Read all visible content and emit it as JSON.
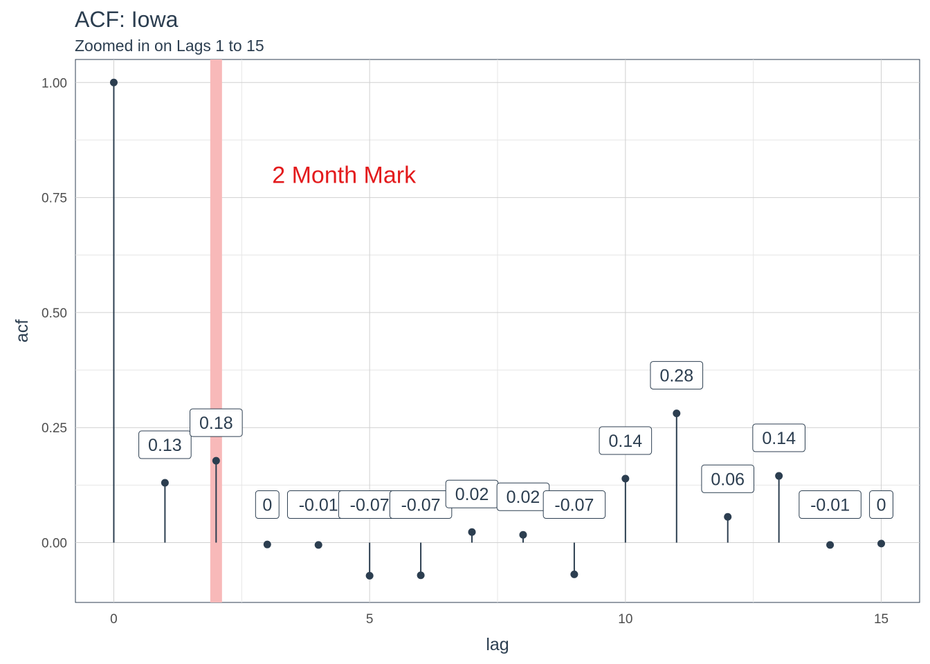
{
  "chart_data": {
    "type": "lollipop",
    "title": "ACF: Iowa",
    "subtitle": "Zoomed in on Lags 1 to 15",
    "xlabel": "lag",
    "ylabel": "acf",
    "xlim": [
      -0.75,
      15.75
    ],
    "ylim": [
      -0.13,
      1.05
    ],
    "x_ticks": [
      0,
      5,
      10,
      15
    ],
    "y_ticks": [
      0.0,
      0.25,
      0.5,
      0.75,
      1.0
    ],
    "y_tick_labels": [
      "0.00",
      "0.25",
      "0.50",
      "0.75",
      "1.00"
    ],
    "grid": true,
    "x": [
      0,
      1,
      2,
      3,
      4,
      5,
      6,
      7,
      8,
      9,
      10,
      11,
      12,
      13,
      14,
      15
    ],
    "values": [
      1.0,
      0.13,
      0.178,
      -0.004,
      -0.005,
      -0.072,
      -0.071,
      0.023,
      0.017,
      -0.069,
      0.139,
      0.281,
      0.056,
      0.145,
      -0.005,
      -0.002
    ],
    "labels": [
      "",
      "0.13",
      "0.18",
      "0",
      "-0.01",
      "-0.07",
      "-0.07",
      "0.02",
      "0.02",
      "-0.07",
      "0.14",
      "0.28",
      "0.06",
      "0.14",
      "-0.01",
      "0"
    ],
    "highlight": {
      "x": 2,
      "color": "#f8b9b9"
    },
    "annotation": {
      "text": "2 Month Mark",
      "x": 4.5,
      "y": 0.8,
      "color": "#e31a1c"
    },
    "point_color": "#2c3e50"
  }
}
